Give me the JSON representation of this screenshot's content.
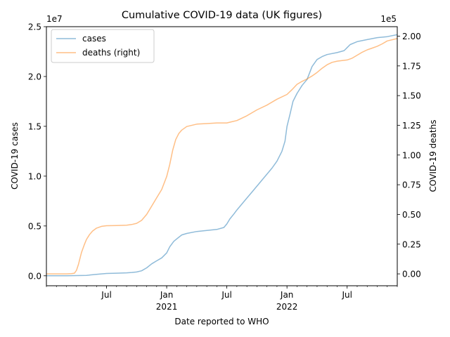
{
  "chart_data": {
    "type": "line",
    "title": "Cumulative COVID-19 data (UK figures)",
    "xlabel": "Date reported to WHO",
    "ylabel_left": "COVID-19 cases",
    "ylabel_right": "COVID-19 deaths",
    "left_offset_label": "1e7",
    "right_offset_label": "1e5",
    "x_months_range": [
      0,
      35
    ],
    "x_ticks": [
      {
        "m": 6,
        "label": "Jul",
        "sub": ""
      },
      {
        "m": 12,
        "label": "Jan",
        "sub": "2021"
      },
      {
        "m": 18,
        "label": "Jul",
        "sub": ""
      },
      {
        "m": 24,
        "label": "Jan",
        "sub": "2022"
      },
      {
        "m": 30,
        "label": "Jul",
        "sub": ""
      }
    ],
    "left_ylim": [
      -0.1,
      2.5
    ],
    "left_ticks": [
      0.0,
      0.5,
      1.0,
      1.5,
      2.0,
      2.5
    ],
    "left_tick_labels": [
      "0.0",
      "0.5",
      "1.0",
      "1.5",
      "2.0",
      "2.5"
    ],
    "right_ylim": [
      -0.1,
      2.08
    ],
    "right_ticks": [
      0.0,
      0.25,
      0.5,
      0.75,
      1.0,
      1.25,
      1.5,
      1.75,
      2.0
    ],
    "right_tick_labels": [
      "0.00",
      "0.25",
      "0.50",
      "0.75",
      "1.00",
      "1.25",
      "1.50",
      "1.75",
      "2.00"
    ],
    "legend_position": "upper-left",
    "series": [
      {
        "name": "cases",
        "axis": "left",
        "color": "#1f77b4",
        "x": [
          0,
          2,
          3,
          4,
          5,
          6,
          7,
          8,
          8.5,
          9,
          9.5,
          10,
          10.5,
          11,
          11.5,
          12,
          12.3,
          12.7,
          13,
          13.5,
          14,
          15,
          16,
          17,
          17.7,
          18,
          18.3,
          18.7,
          19,
          19.5,
          20,
          20.5,
          21,
          21.5,
          22,
          22.5,
          23,
          23.5,
          23.8,
          24,
          24.3,
          24.6,
          25,
          25.5,
          26,
          26.5,
          27,
          27.5,
          28,
          29,
          29.7,
          30,
          30.3,
          31,
          32,
          33,
          34,
          35
        ],
        "y": [
          0,
          0.001,
          0.002,
          0.004,
          0.014,
          0.023,
          0.026,
          0.03,
          0.033,
          0.038,
          0.05,
          0.08,
          0.12,
          0.15,
          0.18,
          0.23,
          0.29,
          0.345,
          0.37,
          0.41,
          0.425,
          0.445,
          0.455,
          0.465,
          0.485,
          0.52,
          0.57,
          0.62,
          0.66,
          0.72,
          0.78,
          0.84,
          0.9,
          0.96,
          1.02,
          1.08,
          1.15,
          1.25,
          1.35,
          1.5,
          1.62,
          1.75,
          1.83,
          1.91,
          1.97,
          2.1,
          2.17,
          2.2,
          2.22,
          2.24,
          2.26,
          2.29,
          2.32,
          2.35,
          2.37,
          2.39,
          2.4,
          2.42
        ]
      },
      {
        "name": "deaths (right)",
        "axis": "right",
        "color": "#ff7f0e",
        "x": [
          0,
          1,
          2,
          2.5,
          2.8,
          3,
          3.2,
          3.5,
          3.8,
          4,
          4.3,
          4.6,
          5,
          5.5,
          6,
          7,
          8,
          8.5,
          9,
          9.5,
          10,
          10.5,
          11,
          11.5,
          12,
          12.3,
          12.6,
          12.9,
          13.2,
          13.5,
          14,
          15,
          16,
          17,
          18,
          18.5,
          19,
          20,
          21,
          22,
          23,
          24,
          24.5,
          25,
          25.5,
          26,
          26.5,
          27,
          27.5,
          28,
          28.5,
          29,
          29.5,
          30,
          30.5,
          31,
          31.5,
          32,
          32.5,
          33,
          33.5,
          34,
          35
        ],
        "y": [
          0,
          0,
          0,
          0.002,
          0.006,
          0.03,
          0.08,
          0.18,
          0.25,
          0.29,
          0.33,
          0.36,
          0.385,
          0.4,
          0.405,
          0.407,
          0.41,
          0.415,
          0.425,
          0.45,
          0.5,
          0.57,
          0.64,
          0.71,
          0.82,
          0.92,
          1.04,
          1.13,
          1.18,
          1.21,
          1.24,
          1.26,
          1.265,
          1.27,
          1.27,
          1.28,
          1.29,
          1.33,
          1.38,
          1.42,
          1.47,
          1.51,
          1.55,
          1.595,
          1.62,
          1.64,
          1.665,
          1.695,
          1.73,
          1.76,
          1.78,
          1.79,
          1.795,
          1.8,
          1.815,
          1.84,
          1.865,
          1.885,
          1.9,
          1.915,
          1.935,
          1.96,
          1.98
        ]
      }
    ]
  }
}
